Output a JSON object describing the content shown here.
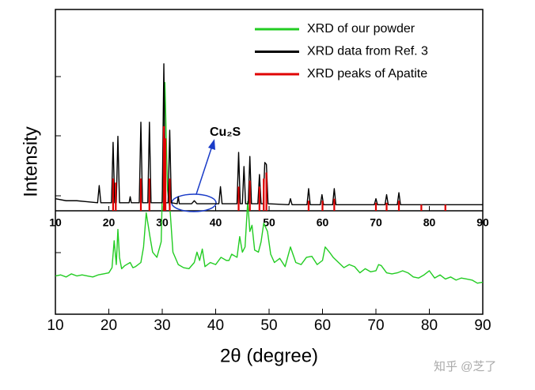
{
  "chart_data": {
    "type": "line",
    "xlabel": "2θ (degree)",
    "ylabel": "Intensity",
    "xlim": [
      10,
      90
    ],
    "xticks": [
      10,
      20,
      30,
      40,
      50,
      60,
      70,
      80,
      90
    ],
    "top_ylim": [
      0,
      100
    ],
    "bottom_ylim": [
      0,
      100
    ],
    "annotation": "Cu₂S",
    "watermark": "知乎 @芝了",
    "series": [
      {
        "name": "XRD of our powder",
        "color": "#22cc22",
        "panel": "bottom",
        "style": "line",
        "x": [
          10,
          11,
          12,
          13,
          14,
          15,
          16,
          17,
          18,
          19,
          20,
          20.6,
          21,
          21.4,
          21.7,
          22,
          22.4,
          23,
          24,
          24.5,
          25,
          26,
          26.5,
          27,
          27.4,
          27.7,
          28.2,
          29,
          29.8,
          30.5,
          31,
          31.5,
          32,
          33,
          34,
          35,
          36,
          36.5,
          37,
          37.5,
          38,
          39,
          40,
          41,
          42,
          42.5,
          43,
          44,
          44.5,
          45,
          45.5,
          46,
          46.4,
          46.8,
          47.3,
          48,
          48.5,
          49,
          49.7,
          50.3,
          51,
          52,
          53,
          54,
          55,
          56,
          57,
          58,
          59,
          60,
          60.5,
          61.3,
          62,
          63,
          64,
          65,
          66,
          67,
          68,
          69,
          70,
          70.5,
          71,
          72,
          73,
          74,
          75,
          76,
          77,
          78,
          79,
          80,
          81,
          82,
          83,
          84,
          85,
          86,
          87,
          88,
          89,
          90
        ],
        "values": [
          37,
          38,
          36,
          39,
          37,
          38,
          37,
          36,
          38,
          39,
          40,
          45,
          71,
          48,
          82,
          55,
          44,
          47,
          50,
          45,
          46,
          50,
          65,
          98,
          85,
          75,
          60,
          55,
          70,
          224,
          120,
          98,
          60,
          48,
          45,
          44,
          50,
          60,
          52,
          63,
          46,
          50,
          48,
          55,
          52,
          52,
          58,
          55,
          75,
          60,
          65,
          109,
          80,
          86,
          62,
          60,
          70,
          88,
          80,
          58,
          50,
          54,
          46,
          65,
          50,
          48,
          55,
          56,
          48,
          52,
          65,
          60,
          55,
          50,
          45,
          48,
          46,
          40,
          44,
          41,
          42,
          48,
          47,
          40,
          39,
          40,
          42,
          40,
          36,
          35,
          38,
          42,
          35,
          38,
          34,
          36,
          33,
          35,
          34,
          33,
          30,
          31
        ]
      },
      {
        "name": "XRD data from Ref. 3",
        "color": "#000000",
        "panel": "top",
        "style": "line",
        "x": [
          10,
          12,
          14,
          16,
          17.9,
          18.2,
          18.5,
          20.5,
          20.8,
          21.1,
          21.4,
          21.7,
          22,
          23.8,
          24,
          24.2,
          25.7,
          26,
          26.3,
          27.3,
          27.6,
          27.9,
          30,
          30.3,
          30.6,
          31.1,
          31.4,
          31.7,
          32.8,
          33,
          33.2,
          35.5,
          36,
          36.5,
          40.6,
          40.9,
          41.2,
          44,
          44.3,
          44.6,
          45,
          45.3,
          45.6,
          46.1,
          46.4,
          46.7,
          47.9,
          48.2,
          48.5,
          48.9,
          49.2,
          49.5,
          49.8,
          53.7,
          54,
          54.3,
          57.1,
          57.4,
          57.7,
          59.6,
          59.9,
          60.2,
          61.9,
          62.2,
          62.5,
          69.7,
          70,
          70.3,
          71.7,
          72,
          72.3,
          74,
          74.3,
          74.6,
          78,
          80,
          85,
          90
        ],
        "values": [
          6,
          5,
          5,
          4.5,
          4,
          12.5,
          4,
          4,
          34,
          4,
          4,
          37,
          4,
          4,
          7,
          4,
          4,
          44,
          4,
          4,
          44,
          4,
          4,
          73,
          4,
          4,
          40,
          4,
          3.5,
          7,
          3.5,
          3.5,
          5,
          3.5,
          3.5,
          12,
          3.5,
          3.5,
          29,
          3.5,
          3.5,
          22,
          3.5,
          3.5,
          27,
          3.5,
          3.5,
          18,
          3.5,
          3.5,
          24,
          23,
          3.5,
          3,
          6,
          3,
          3,
          11,
          3,
          3,
          8,
          3,
          3,
          11,
          3,
          3,
          6,
          3,
          3,
          8,
          3,
          3,
          9,
          3,
          3,
          3,
          3,
          3
        ]
      },
      {
        "name": "XRD peaks of Apatite",
        "color": "#e00000",
        "panel": "top",
        "style": "stick",
        "x": [
          20.8,
          21.3,
          26,
          27.6,
          30.3,
          30.6,
          31.4,
          44.3,
          46.4,
          48.2,
          49,
          49.5,
          57.4,
          60,
          62.2,
          70,
          72,
          74.3,
          78.5,
          83
        ],
        "values": [
          16,
          14,
          16,
          16,
          42,
          36,
          16,
          12,
          15,
          12,
          16,
          19,
          5,
          5,
          6,
          4,
          4,
          5,
          3,
          3
        ]
      }
    ]
  }
}
